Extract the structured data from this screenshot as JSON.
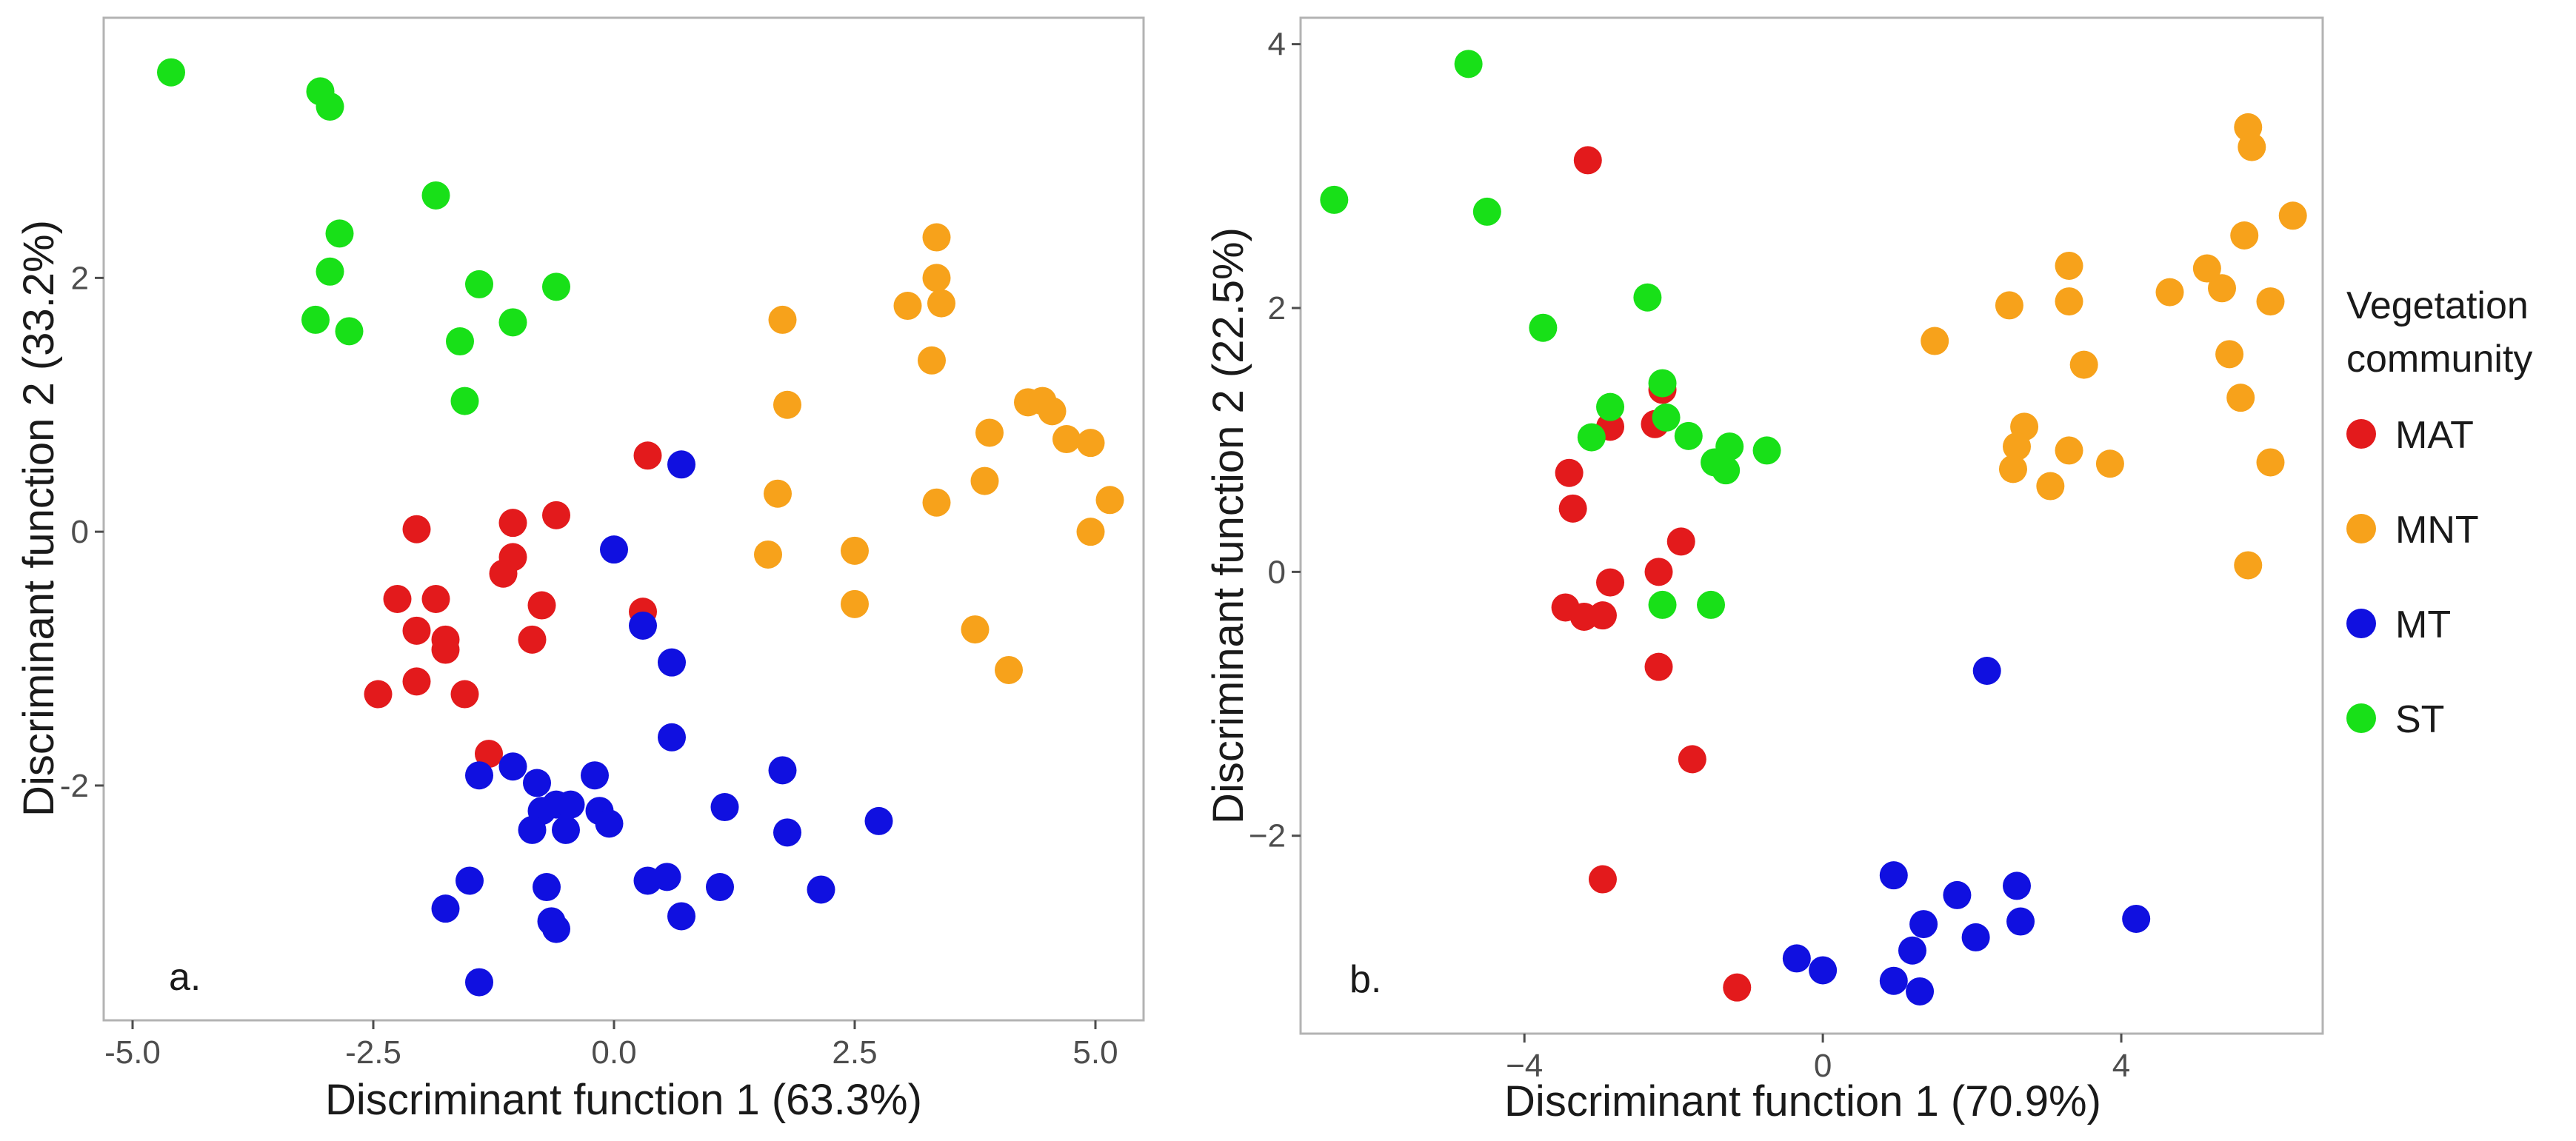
{
  "legend": {
    "title_line1": "Vegetation",
    "title_line2": "community",
    "entries": [
      {
        "name": "MAT",
        "color": "#e31a1c"
      },
      {
        "name": "MNT",
        "color": "#f7a21b"
      },
      {
        "name": "MT",
        "color": "#1010e0"
      },
      {
        "name": "ST",
        "color": "#18e018"
      }
    ]
  },
  "chart_data": [
    {
      "type": "scatter",
      "panel_label": "a.",
      "xlabel": "Discriminant function 1 (63.3%)",
      "ylabel": "Discriminant function 2 (33.2%)",
      "xlim": [
        -5.3,
        5.5
      ],
      "ylim": [
        -3.85,
        4.05
      ],
      "xticks": [
        -5.0,
        -2.5,
        0.0,
        2.5,
        5.0
      ],
      "xtick_labels": [
        "-5.0",
        "-2.5",
        "0.0",
        "2.5",
        "5.0"
      ],
      "yticks": [
        -2,
        0,
        2
      ],
      "ytick_labels": [
        "-2",
        "0",
        "2"
      ],
      "grid": false,
      "series": [
        {
          "name": "MAT",
          "points": [
            [
              -2.05,
              0.02
            ],
            [
              -2.25,
              -0.53
            ],
            [
              -1.85,
              -0.53
            ],
            [
              -2.05,
              -0.78
            ],
            [
              -1.75,
              -0.85
            ],
            [
              -1.75,
              -0.93
            ],
            [
              -2.05,
              -1.18
            ],
            [
              -1.55,
              -1.28
            ],
            [
              -2.45,
              -1.28
            ],
            [
              -1.05,
              0.07
            ],
            [
              -1.05,
              -0.2
            ],
            [
              -1.15,
              -0.33
            ],
            [
              -0.6,
              0.13
            ],
            [
              -0.75,
              -0.58
            ],
            [
              -0.85,
              -0.85
            ],
            [
              -1.3,
              -1.75
            ],
            [
              0.35,
              0.6
            ],
            [
              0.3,
              -0.63
            ]
          ]
        },
        {
          "name": "MNT",
          "points": [
            [
              1.75,
              1.67
            ],
            [
              3.35,
              2.32
            ],
            [
              3.35,
              2.0
            ],
            [
              3.4,
              1.8
            ],
            [
              3.05,
              1.78
            ],
            [
              3.3,
              1.35
            ],
            [
              1.8,
              1.0
            ],
            [
              1.7,
              0.3
            ],
            [
              1.6,
              -0.18
            ],
            [
              2.5,
              -0.15
            ],
            [
              2.5,
              -0.57
            ],
            [
              4.3,
              1.02
            ],
            [
              4.45,
              1.03
            ],
            [
              4.55,
              0.95
            ],
            [
              3.9,
              0.78
            ],
            [
              4.7,
              0.73
            ],
            [
              4.95,
              0.7
            ],
            [
              5.15,
              0.25
            ],
            [
              3.85,
              0.4
            ],
            [
              3.35,
              0.23
            ],
            [
              4.95,
              0.0
            ],
            [
              3.75,
              -0.77
            ],
            [
              4.1,
              -1.09
            ]
          ]
        },
        {
          "name": "MT",
          "points": [
            [
              0.7,
              0.53
            ],
            [
              0.0,
              -0.14
            ],
            [
              0.3,
              -0.74
            ],
            [
              0.6,
              -1.03
            ],
            [
              0.6,
              -1.62
            ],
            [
              -1.05,
              -1.85
            ],
            [
              -1.4,
              -1.92
            ],
            [
              -0.8,
              -1.98
            ],
            [
              -0.2,
              -1.92
            ],
            [
              -0.6,
              -2.15
            ],
            [
              -0.45,
              -2.15
            ],
            [
              -0.75,
              -2.2
            ],
            [
              -0.15,
              -2.2
            ],
            [
              -0.05,
              -2.3
            ],
            [
              -0.85,
              -2.35
            ],
            [
              -0.5,
              -2.35
            ],
            [
              1.15,
              -2.17
            ],
            [
              1.75,
              -1.88
            ],
            [
              1.8,
              -2.37
            ],
            [
              2.75,
              -2.28
            ],
            [
              2.15,
              -2.82
            ],
            [
              0.35,
              -2.75
            ],
            [
              0.55,
              -2.72
            ],
            [
              1.1,
              -2.8
            ],
            [
              -1.5,
              -2.75
            ],
            [
              -0.7,
              -2.8
            ],
            [
              -1.75,
              -2.97
            ],
            [
              -0.65,
              -3.07
            ],
            [
              -0.6,
              -3.13
            ],
            [
              0.7,
              -3.03
            ],
            [
              -1.4,
              -3.55
            ]
          ]
        },
        {
          "name": "ST",
          "points": [
            [
              -4.6,
              3.62
            ],
            [
              -3.05,
              3.47
            ],
            [
              -2.95,
              3.35
            ],
            [
              -2.85,
              2.35
            ],
            [
              -2.95,
              2.05
            ],
            [
              -3.1,
              1.67
            ],
            [
              -2.75,
              1.58
            ],
            [
              -1.85,
              2.65
            ],
            [
              -1.4,
              1.95
            ],
            [
              -0.6,
              1.93
            ],
            [
              -1.05,
              1.65
            ],
            [
              -1.6,
              1.5
            ],
            [
              -1.55,
              1.03
            ]
          ]
        }
      ]
    },
    {
      "type": "scatter",
      "panel_label": "b.",
      "xlabel": "Discriminant function 1 (70.9%)",
      "ylabel": "Discriminant function 2 (22.5%)",
      "xlim": [
        -7.0,
        6.7
      ],
      "ylim": [
        -3.5,
        4.2
      ],
      "xticks": [
        -4,
        0,
        4
      ],
      "xtick_labels": [
        "−4",
        "0",
        "4"
      ],
      "yticks": [
        -2,
        0,
        2,
        4
      ],
      "ytick_labels": [
        "−2",
        "0",
        "2",
        "4"
      ],
      "grid": false,
      "series": [
        {
          "name": "MAT",
          "points": [
            [
              -3.15,
              3.12
            ],
            [
              -3.4,
              0.75
            ],
            [
              -3.35,
              0.48
            ],
            [
              -3.45,
              -0.27
            ],
            [
              -3.2,
              -0.34
            ],
            [
              -2.95,
              -0.33
            ],
            [
              -2.85,
              -0.08
            ],
            [
              -2.85,
              1.1
            ],
            [
              -2.25,
              1.12
            ],
            [
              -2.15,
              1.38
            ],
            [
              -1.9,
              0.23
            ],
            [
              -2.2,
              0.0
            ],
            [
              -2.2,
              -0.72
            ],
            [
              -1.75,
              -1.42
            ],
            [
              -2.95,
              -2.33
            ],
            [
              -1.15,
              -3.15
            ]
          ]
        },
        {
          "name": "MNT",
          "points": [
            [
              5.7,
              3.37
            ],
            [
              5.75,
              3.22
            ],
            [
              6.3,
              2.7
            ],
            [
              5.65,
              2.55
            ],
            [
              5.35,
              2.15
            ],
            [
              5.15,
              2.3
            ],
            [
              4.65,
              2.12
            ],
            [
              6.0,
              2.05
            ],
            [
              5.45,
              1.65
            ],
            [
              5.6,
              1.32
            ],
            [
              6.0,
              0.83
            ],
            [
              5.7,
              0.05
            ],
            [
              3.3,
              2.32
            ],
            [
              3.3,
              2.05
            ],
            [
              2.5,
              2.02
            ],
            [
              1.5,
              1.75
            ],
            [
              3.5,
              1.57
            ],
            [
              2.7,
              1.1
            ],
            [
              2.6,
              0.95
            ],
            [
              2.55,
              0.78
            ],
            [
              3.3,
              0.92
            ],
            [
              3.05,
              0.65
            ],
            [
              3.85,
              0.82
            ]
          ]
        },
        {
          "name": "MT",
          "points": [
            [
              2.2,
              -0.75
            ],
            [
              0.95,
              -2.3
            ],
            [
              1.35,
              -2.67
            ],
            [
              1.8,
              -2.45
            ],
            [
              2.6,
              -2.38
            ],
            [
              2.05,
              -2.77
            ],
            [
              2.65,
              -2.65
            ],
            [
              4.2,
              -2.63
            ],
            [
              1.2,
              -2.87
            ],
            [
              -0.35,
              -2.93
            ],
            [
              0.0,
              -3.02
            ],
            [
              0.95,
              -3.1
            ],
            [
              1.3,
              -3.18
            ]
          ]
        },
        {
          "name": "ST",
          "points": [
            [
              -4.75,
              3.85
            ],
            [
              -6.55,
              2.82
            ],
            [
              -4.5,
              2.73
            ],
            [
              -2.35,
              2.08
            ],
            [
              -3.75,
              1.85
            ],
            [
              -2.15,
              1.43
            ],
            [
              -2.85,
              1.25
            ],
            [
              -2.1,
              1.17
            ],
            [
              -1.8,
              1.03
            ],
            [
              -3.1,
              1.02
            ],
            [
              -1.25,
              0.95
            ],
            [
              -0.75,
              0.92
            ],
            [
              -1.45,
              0.83
            ],
            [
              -1.3,
              0.77
            ],
            [
              -2.15,
              -0.25
            ],
            [
              -1.5,
              -0.25
            ]
          ]
        }
      ]
    }
  ]
}
